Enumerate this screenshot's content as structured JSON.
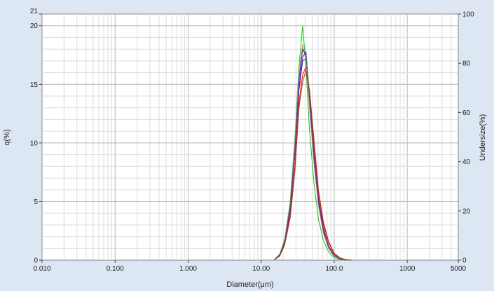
{
  "chart_data": {
    "type": "line",
    "title": "",
    "xlabel": "Diameter(μm)",
    "ylabel": "q(%)",
    "y2label": "Undersize(%)",
    "x_scale": "log",
    "xlim": [
      0.01,
      5000
    ],
    "ylim": [
      0,
      21
    ],
    "y2lim": [
      0,
      100
    ],
    "x_ticks": [
      {
        "value": 0.01,
        "label": "0.010"
      },
      {
        "value": 0.1,
        "label": "0.100"
      },
      {
        "value": 1,
        "label": "1.000"
      },
      {
        "value": 10,
        "label": "10.00"
      },
      {
        "value": 100,
        "label": "100.0"
      },
      {
        "value": 1000,
        "label": "1000"
      },
      {
        "value": 5000,
        "label": "5000"
      }
    ],
    "y_ticks": [
      {
        "value": 0,
        "label": "0"
      },
      {
        "value": 5,
        "label": "5"
      },
      {
        "value": 10,
        "label": "10"
      },
      {
        "value": 15,
        "label": "15"
      },
      {
        "value": 20,
        "label": "20"
      },
      {
        "value": 21,
        "label": "21"
      }
    ],
    "y2_ticks": [
      {
        "value": 0,
        "label": "0"
      },
      {
        "value": 20,
        "label": "20"
      },
      {
        "value": 40,
        "label": "40"
      },
      {
        "value": 60,
        "label": "60"
      },
      {
        "value": 80,
        "label": "80"
      },
      {
        "value": 100,
        "label": "100"
      }
    ],
    "grid": true,
    "legend": "none",
    "x": [
      15,
      18,
      21,
      25,
      29,
      33,
      37,
      41,
      46,
      53,
      61,
      71,
      84,
      100,
      120,
      145,
      175
    ],
    "series": [
      {
        "color": "#00cc00",
        "values": [
          0,
          0.5,
          1.8,
          5.0,
          10.5,
          16.5,
          20.0,
          16.5,
          11.0,
          6.5,
          3.5,
          1.7,
          0.7,
          0.2,
          0.05,
          0,
          0
        ]
      },
      {
        "color": "#000000",
        "values": [
          0,
          0.5,
          1.6,
          4.5,
          9.5,
          15.5,
          18.0,
          17.5,
          13.5,
          8.5,
          4.8,
          2.4,
          1.0,
          0.35,
          0.1,
          0,
          0
        ]
      },
      {
        "color": "#1a1aff",
        "values": [
          0,
          0.4,
          1.5,
          4.2,
          9.0,
          14.5,
          17.0,
          17.2,
          13.8,
          9.0,
          5.2,
          2.7,
          1.2,
          0.4,
          0.1,
          0,
          0
        ]
      },
      {
        "color": "#ff0000",
        "values": [
          0,
          0.4,
          1.4,
          3.8,
          8.0,
          13.5,
          15.8,
          16.5,
          14.2,
          9.8,
          5.8,
          3.1,
          1.5,
          0.5,
          0.15,
          0.05,
          0
        ]
      },
      {
        "color": "#ff8080",
        "values": [
          0,
          0.5,
          1.7,
          4.8,
          10.2,
          16.0,
          18.4,
          17.0,
          12.8,
          8.2,
          4.6,
          2.3,
          1.0,
          0.35,
          0.1,
          0,
          0
        ]
      },
      {
        "color": "#9900cc",
        "values": [
          0,
          0.4,
          1.5,
          4.3,
          9.2,
          14.8,
          17.3,
          17.8,
          14.0,
          9.2,
          5.3,
          2.8,
          1.2,
          0.4,
          0.1,
          0,
          0
        ]
      },
      {
        "color": "#008080",
        "values": [
          0,
          0.5,
          1.6,
          4.6,
          9.6,
          15.4,
          17.9,
          17.6,
          13.6,
          8.6,
          4.9,
          2.5,
          1.1,
          0.35,
          0.1,
          0,
          0
        ]
      },
      {
        "color": "#cc3300",
        "values": [
          0,
          0.35,
          1.3,
          3.6,
          7.6,
          13.0,
          15.2,
          16.2,
          14.5,
          10.2,
          6.0,
          3.3,
          1.6,
          0.6,
          0.2,
          0.05,
          0
        ]
      }
    ]
  }
}
